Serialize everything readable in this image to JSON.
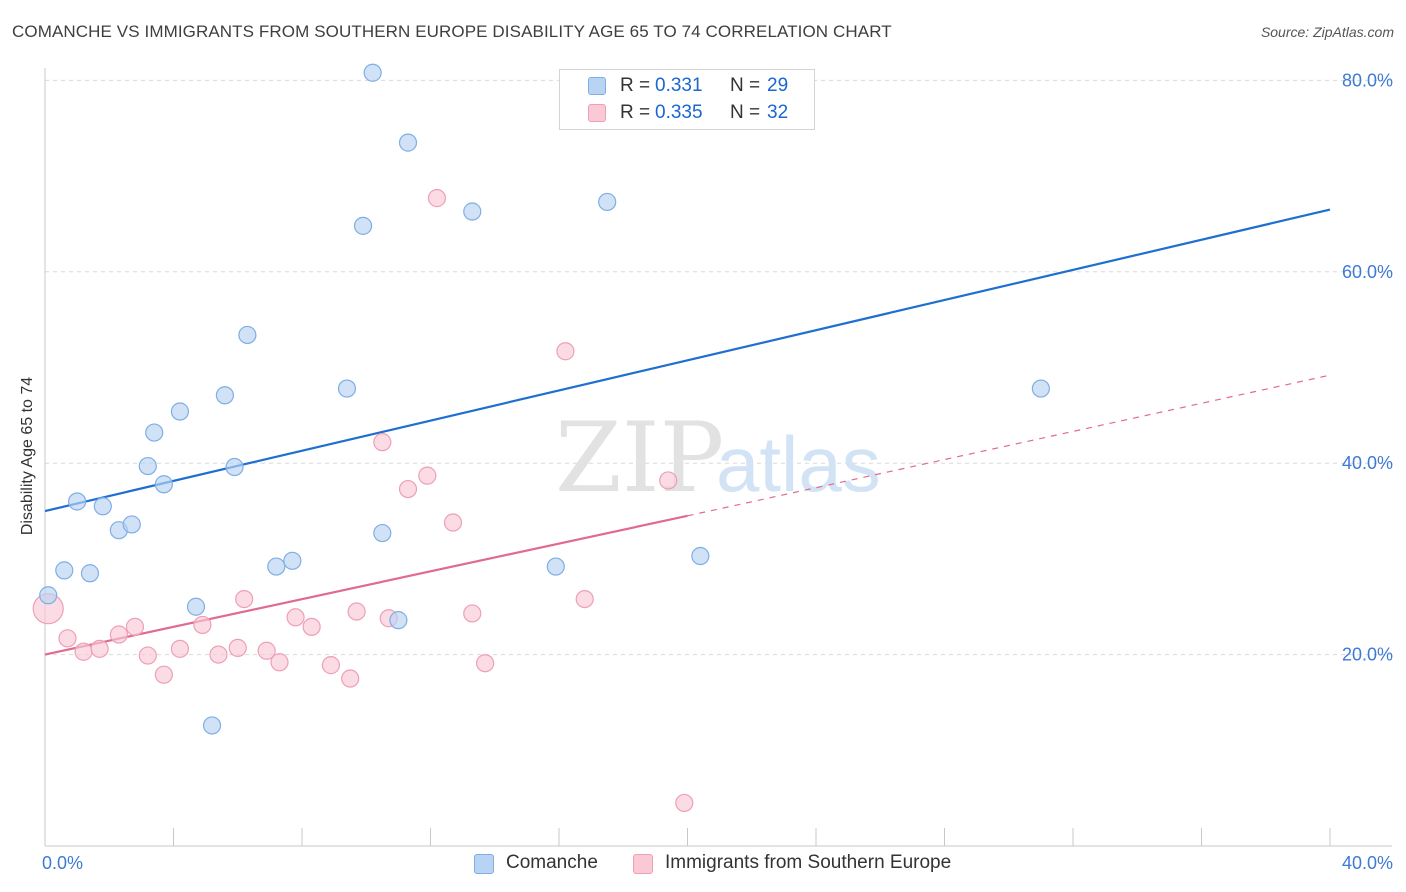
{
  "header": {
    "title": "COMANCHE VS IMMIGRANTS FROM SOUTHERN EUROPE DISABILITY AGE 65 TO 74 CORRELATION CHART",
    "source": "Source: ZipAtlas.com"
  },
  "watermark": {
    "part1": "ZIP",
    "part2": "atlas"
  },
  "legend": {
    "rows": [
      {
        "r_label": "R =",
        "r_value": "0.331",
        "n_label": "N =",
        "n_value": "29"
      },
      {
        "r_label": "R =",
        "r_value": "0.335",
        "n_label": "N =",
        "n_value": "32"
      }
    ]
  },
  "bottom_legend": {
    "items": [
      {
        "label": "Comanche"
      },
      {
        "label": "Immigrants from Southern Europe"
      }
    ]
  },
  "colors": {
    "blue_fill": "#b9d3f3",
    "blue_stroke": "#7eaee6",
    "blue_line": "#1f6fd1",
    "pink_fill": "#f9c9d6",
    "pink_stroke": "#ee9fb6",
    "pink_line": "#e06a92",
    "axis_text": "#3d7ad6",
    "grid": "#dadada"
  },
  "chart_data": {
    "type": "scatter",
    "title": "COMANCHE VS IMMIGRANTS FROM SOUTHERN EUROPE DISABILITY AGE 65 TO 74 CORRELATION CHART",
    "xlabel": "",
    "ylabel": "Disability Age 65 to 74",
    "xlim": [
      0,
      40
    ],
    "ylim": [
      0,
      80
    ],
    "x_tick_labels": [
      "0.0%",
      "40.0%"
    ],
    "y_ticks": [
      20,
      40,
      60,
      80
    ],
    "y_tick_labels": [
      "20.0%",
      "40.0%",
      "60.0%",
      "80.0%"
    ],
    "grid": true,
    "series": [
      {
        "name": "Comanche",
        "color": "blue",
        "R": 0.331,
        "N": 29,
        "trend": {
          "x0": 0,
          "y0": 35.0,
          "x1": 40,
          "y1": 66.5
        },
        "points": [
          {
            "x": 0.1,
            "y": 26.2,
            "size": "small"
          },
          {
            "x": 0.6,
            "y": 28.8
          },
          {
            "x": 1.0,
            "y": 36.0
          },
          {
            "x": 1.4,
            "y": 28.5
          },
          {
            "x": 1.8,
            "y": 35.5
          },
          {
            "x": 2.3,
            "y": 33.0
          },
          {
            "x": 2.7,
            "y": 33.6
          },
          {
            "x": 3.2,
            "y": 39.7
          },
          {
            "x": 3.4,
            "y": 43.2
          },
          {
            "x": 3.7,
            "y": 37.8
          },
          {
            "x": 4.2,
            "y": 45.4
          },
          {
            "x": 4.7,
            "y": 25.0
          },
          {
            "x": 5.2,
            "y": 12.6
          },
          {
            "x": 5.6,
            "y": 47.1
          },
          {
            "x": 5.9,
            "y": 39.6
          },
          {
            "x": 6.3,
            "y": 53.4
          },
          {
            "x": 7.2,
            "y": 29.2
          },
          {
            "x": 7.7,
            "y": 29.8
          },
          {
            "x": 9.4,
            "y": 47.8
          },
          {
            "x": 9.9,
            "y": 64.8
          },
          {
            "x": 10.2,
            "y": 80.8
          },
          {
            "x": 10.5,
            "y": 32.7
          },
          {
            "x": 11.0,
            "y": 23.6
          },
          {
            "x": 11.3,
            "y": 73.5
          },
          {
            "x": 13.3,
            "y": 66.3
          },
          {
            "x": 15.9,
            "y": 29.2
          },
          {
            "x": 17.5,
            "y": 67.3
          },
          {
            "x": 20.4,
            "y": 30.3
          },
          {
            "x": 31.0,
            "y": 47.8
          }
        ]
      },
      {
        "name": "Immigrants from Southern Europe",
        "color": "pink",
        "R": 0.335,
        "N": 32,
        "trend": {
          "x0": 0,
          "y0": 20.0,
          "x1": 20.0,
          "y1": 34.5,
          "dashed_to_x": 40,
          "dashed_to_y": 49.2
        },
        "points": [
          {
            "x": 0.1,
            "y": 24.8,
            "size": "large"
          },
          {
            "x": 0.7,
            "y": 21.7
          },
          {
            "x": 1.2,
            "y": 20.3
          },
          {
            "x": 1.7,
            "y": 20.6
          },
          {
            "x": 2.3,
            "y": 22.1
          },
          {
            "x": 2.8,
            "y": 22.9
          },
          {
            "x": 3.2,
            "y": 19.9
          },
          {
            "x": 3.7,
            "y": 17.9
          },
          {
            "x": 4.2,
            "y": 20.6
          },
          {
            "x": 4.9,
            "y": 23.1
          },
          {
            "x": 5.4,
            "y": 20.0
          },
          {
            "x": 6.0,
            "y": 20.7
          },
          {
            "x": 6.2,
            "y": 25.8
          },
          {
            "x": 6.9,
            "y": 20.4
          },
          {
            "x": 7.3,
            "y": 19.2
          },
          {
            "x": 7.8,
            "y": 23.9
          },
          {
            "x": 8.3,
            "y": 22.9
          },
          {
            "x": 8.9,
            "y": 18.9
          },
          {
            "x": 9.5,
            "y": 17.5
          },
          {
            "x": 9.7,
            "y": 24.5
          },
          {
            "x": 10.5,
            "y": 42.2
          },
          {
            "x": 10.7,
            "y": 23.8
          },
          {
            "x": 11.3,
            "y": 37.3
          },
          {
            "x": 11.9,
            "y": 38.7
          },
          {
            "x": 12.2,
            "y": 67.7
          },
          {
            "x": 12.7,
            "y": 33.8
          },
          {
            "x": 13.3,
            "y": 24.3
          },
          {
            "x": 13.7,
            "y": 19.1
          },
          {
            "x": 16.2,
            "y": 51.7
          },
          {
            "x": 16.8,
            "y": 25.8
          },
          {
            "x": 19.4,
            "y": 38.2
          },
          {
            "x": 19.9,
            "y": 4.5
          }
        ]
      }
    ]
  }
}
